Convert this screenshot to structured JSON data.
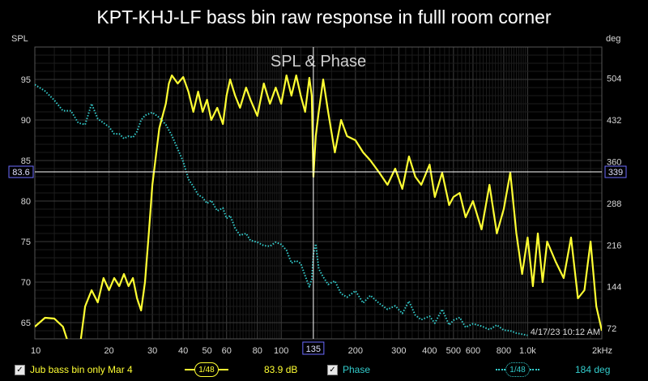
{
  "title": "KPT-KHJ-LF bass bin raw response in fulll room corner",
  "chart_data": {
    "type": "line",
    "inner_title": "SPL & Phase",
    "x_scale": "log",
    "xlim": [
      10,
      2000
    ],
    "x_ticks": [
      {
        "v": 10,
        "label": "10"
      },
      {
        "v": 20,
        "label": "20"
      },
      {
        "v": 30,
        "label": "30"
      },
      {
        "v": 40,
        "label": "40"
      },
      {
        "v": 50,
        "label": "50"
      },
      {
        "v": 60,
        "label": "60"
      },
      {
        "v": 80,
        "label": "80"
      },
      {
        "v": 100,
        "label": "100"
      },
      {
        "v": 200,
        "label": "200"
      },
      {
        "v": 300,
        "label": "300"
      },
      {
        "v": 400,
        "label": "400"
      },
      {
        "v": 500,
        "label": "500"
      },
      {
        "v": 600,
        "label": "600"
      },
      {
        "v": 800,
        "label": "800"
      },
      {
        "v": 1000,
        "label": "1.0k"
      },
      {
        "v": 2000,
        "label": "2kHz"
      }
    ],
    "left_axis": {
      "label": "SPL",
      "ylim": [
        63,
        99
      ],
      "ticks": [
        65,
        70,
        75,
        80,
        85,
        90,
        95
      ]
    },
    "right_axis": {
      "label": "deg",
      "ylim": [
        54,
        558
      ],
      "ticks": [
        72,
        144,
        216,
        288,
        360,
        432,
        504
      ]
    },
    "grid": true,
    "cursor": {
      "x": 135,
      "x_label": "135",
      "y_left_label": "83.6",
      "y_right_label": "339"
    },
    "timestamp": "4/17/23 10:12 AM",
    "series": [
      {
        "name": "Jub bass bin only Mar 4",
        "axis": "left",
        "color": "#ffff33",
        "style": "solid",
        "x": [
          10,
          11,
          12,
          13,
          14,
          15,
          16,
          17,
          18,
          19,
          20,
          21,
          22,
          23,
          24,
          25,
          26,
          27,
          28,
          29,
          30,
          32,
          34,
          35,
          36,
          38,
          40,
          42,
          44,
          46,
          48,
          50,
          52,
          55,
          58,
          60,
          62,
          65,
          68,
          72,
          75,
          80,
          85,
          90,
          95,
          100,
          105,
          110,
          115,
          120,
          125,
          130,
          133,
          135,
          138,
          142,
          148,
          155,
          165,
          175,
          185,
          200,
          215,
          230,
          250,
          270,
          290,
          310,
          330,
          350,
          370,
          400,
          420,
          450,
          480,
          500,
          530,
          560,
          600,
          650,
          700,
          750,
          800,
          850,
          900,
          950,
          1000,
          1050,
          1100,
          1150,
          1200,
          1300,
          1400,
          1500,
          1600,
          1700,
          1800,
          1900,
          2000
        ],
        "values": [
          64.5,
          65.6,
          65.5,
          64.5,
          61.5,
          60.5,
          67.0,
          69.0,
          67.5,
          70.5,
          69.0,
          70.5,
          69.5,
          71.0,
          69.5,
          70.5,
          68.0,
          66.5,
          70.0,
          76.0,
          82.0,
          89.0,
          92.0,
          94.5,
          95.5,
          94.5,
          95.3,
          93.5,
          91.0,
          93.5,
          91.0,
          92.5,
          90.0,
          91.5,
          89.5,
          93.0,
          95.0,
          93.0,
          91.5,
          94.0,
          92.5,
          90.5,
          94.5,
          92.0,
          94.0,
          92.0,
          95.5,
          93.0,
          95.5,
          93.0,
          91.0,
          95.2,
          93.0,
          83.0,
          88.0,
          91.0,
          95.0,
          91.0,
          86.0,
          90.0,
          88.0,
          87.5,
          86.0,
          85.0,
          83.5,
          82.0,
          84.0,
          81.5,
          85.5,
          83.0,
          82.0,
          84.5,
          80.5,
          83.5,
          79.5,
          80.5,
          81.0,
          78.0,
          80.0,
          76.5,
          82.0,
          76.0,
          79.0,
          83.5,
          76.0,
          71.0,
          75.5,
          69.5,
          76.0,
          70.0,
          75.0,
          72.5,
          70.5,
          75.5,
          68.0,
          69.0,
          75.0,
          67.0,
          64.0
        ]
      },
      {
        "name": "Phase",
        "axis": "right",
        "color": "#33cccc",
        "style": "dotted",
        "x": [
          10,
          11,
          12,
          13,
          14,
          15,
          16,
          17,
          18,
          19,
          20,
          21,
          22,
          23,
          24,
          25,
          26,
          27,
          28,
          30,
          32,
          34,
          36,
          38,
          40,
          42,
          44,
          46,
          48,
          50,
          52,
          55,
          58,
          60,
          62,
          65,
          68,
          72,
          75,
          80,
          85,
          90,
          95,
          100,
          105,
          110,
          115,
          120,
          125,
          130,
          133,
          135,
          138,
          142,
          148,
          155,
          165,
          175,
          185,
          200,
          215,
          230,
          250,
          270,
          290,
          310,
          330,
          350,
          370,
          400,
          420,
          450,
          480,
          500,
          530,
          560,
          600,
          650,
          700,
          750,
          800,
          850,
          900,
          950,
          1000
        ],
        "values": [
          493,
          482,
          466,
          448,
          448,
          427,
          424,
          460,
          434,
          427,
          420,
          408,
          408,
          400,
          404,
          402,
          412,
          432,
          440,
          445,
          436,
          424,
          405,
          382,
          360,
          330,
          317,
          303,
          298,
          288,
          293,
          275,
          280,
          262,
          267,
          245,
          233,
          236,
          224,
          221,
          215,
          214,
          221,
          217,
          207,
          185,
          189,
          184,
          163,
          144,
          157,
          200,
          218,
          175,
          161,
          148,
          154,
          132,
          126,
          137,
          116,
          129,
          115,
          105,
          111,
          98,
          119,
          95,
          87,
          93,
          81,
          105,
          78,
          86,
          91,
          74,
          80,
          76,
          70,
          78,
          69,
          68,
          64,
          62,
          60
        ]
      }
    ]
  },
  "legend": {
    "spl_name": "Jub bass bin only Mar 4",
    "spl_smoothing": "1/48",
    "spl_value": "83.9 dB",
    "phase_name": "Phase",
    "phase_smoothing": "1/48",
    "phase_value": "184 deg",
    "check_mark": "✓"
  }
}
